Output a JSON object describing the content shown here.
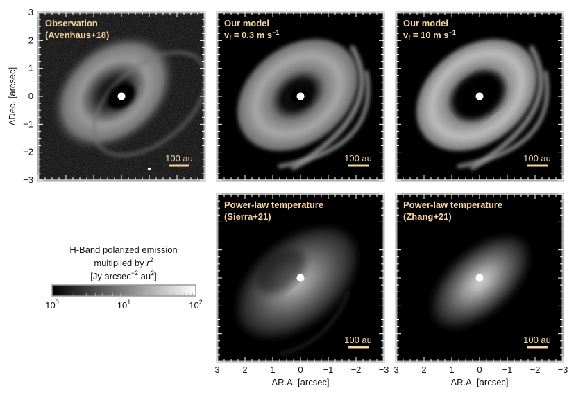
{
  "chart_data": {
    "type": "image-grid",
    "xlabel": "ΔR.A. [arcsec]",
    "ylabel": "ΔDec. [arcsec]",
    "xlim": [
      3,
      -3
    ],
    "ylim": [
      -3,
      3
    ],
    "ticks": [
      3,
      2,
      1,
      0,
      -1,
      -2,
      -3
    ],
    "tick_labels_x": [
      "3",
      "2",
      "1",
      "0",
      "−1",
      "−2",
      "−3"
    ],
    "tick_labels_y": [
      "3",
      "2",
      "1",
      "0",
      "−1",
      "−2",
      "−3"
    ],
    "scalebar_label": "100 au",
    "label_color": "#f5d5a0",
    "panels": [
      {
        "id": "observation",
        "label_line1": "Observation",
        "label_line2": "(Avenhaus+18)",
        "kind": "observation"
      },
      {
        "id": "model_vf_03",
        "label_line1": "Our model",
        "label_line2": "v_f = 0.3 m s⁻¹",
        "label_line2_main": "v",
        "label_line2_sub": "f",
        "label_line2_rest": " = 0.3 m s",
        "label_line2_sup": "−1",
        "kind": "model_low"
      },
      {
        "id": "model_vf_10",
        "label_line1": "Our model",
        "label_line2": "v_f = 10 m s⁻¹",
        "label_line2_main": "v",
        "label_line2_sub": "f",
        "label_line2_rest": " = 10 m s",
        "label_line2_sup": "−1",
        "kind": "model_high"
      },
      {
        "id": "powerlaw_sierra",
        "label_line1": "Power-law temperature",
        "label_line2": "(Sierra+21)",
        "kind": "powerlaw_sierra"
      },
      {
        "id": "powerlaw_zhang",
        "label_line1": "Power-law temperature",
        "label_line2": "(Zhang+21)",
        "kind": "powerlaw_zhang"
      }
    ],
    "colorbar": {
      "title_line1": "H-Band polarized emission",
      "title_line2_main": "multiplied by ",
      "title_line2_var": "r",
      "title_line2_sup": "2",
      "title_line3_a": "[Jy arcsec",
      "title_line3_sup1": "−2",
      "title_line3_b": " au",
      "title_line3_sup2": "2",
      "title_line3_c": "]",
      "scale": "log",
      "range": [
        1,
        100
      ],
      "tick_labels": [
        {
          "base": "10",
          "exp": "0",
          "value": 1
        },
        {
          "base": "10",
          "exp": "1",
          "value": 10
        },
        {
          "base": "10",
          "exp": "2",
          "value": 100
        }
      ],
      "colormap": "gray"
    }
  }
}
